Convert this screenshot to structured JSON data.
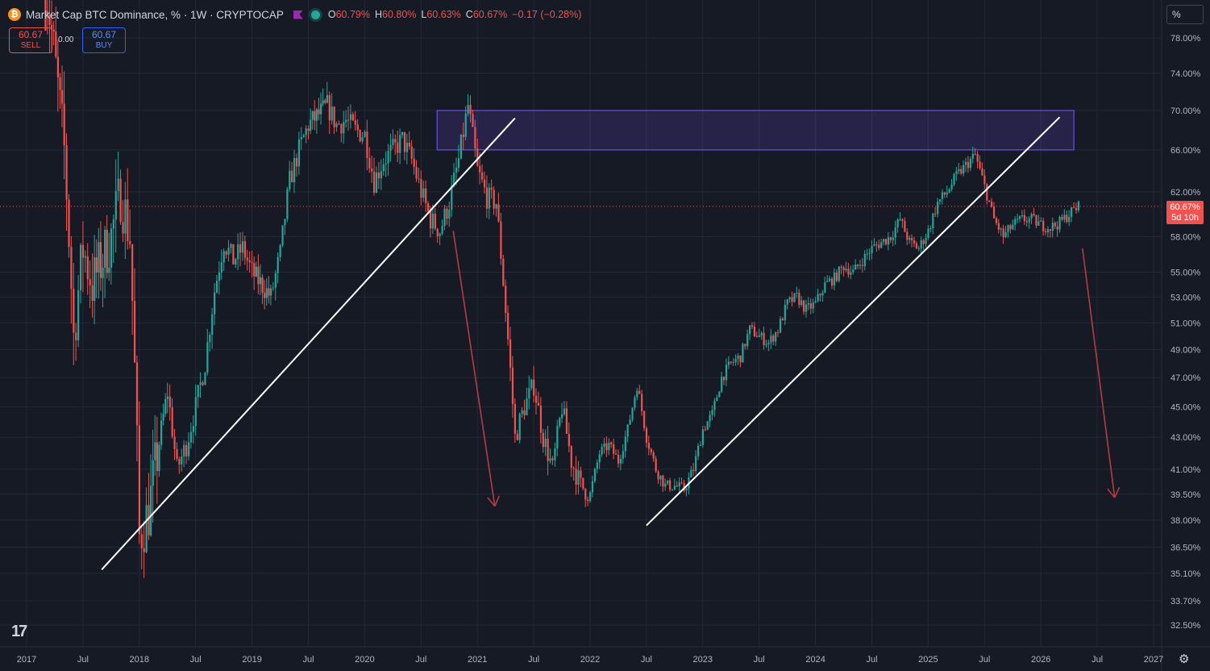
{
  "header": {
    "symbol_icon": "bitcoin-icon",
    "title": "Market Cap BTC Dominance, % · 1W · CRYPTOCAP",
    "ohlc": {
      "o_label": "O",
      "o_value": "60.79%",
      "h_label": "H",
      "h_value": "60.80%",
      "l_label": "L",
      "l_value": "60.63%",
      "c_label": "C",
      "c_value": "60.67%",
      "change": "−0.17 (−0.28%)"
    }
  },
  "trade": {
    "sell_price": "60.67",
    "sell_label": "SELL",
    "spread": "0.00",
    "buy_price": "60.67",
    "buy_label": "BUY"
  },
  "scale_button": "%",
  "last_price": {
    "value": "60.67%",
    "countdown": "5d 10h"
  },
  "colors": {
    "up": "#26a69a",
    "down": "#ef5350",
    "background": "#161a25",
    "zone": "#7b57ff"
  },
  "chart_data": {
    "type": "candlestick",
    "x_start": "2017-03",
    "x_end": "2026-05",
    "x_ticks": [
      "2017",
      "Jul",
      "2018",
      "Jul",
      "2019",
      "Jul",
      "2020",
      "Jul",
      "2021",
      "Jul",
      "2022",
      "Jul",
      "2023",
      "Jul",
      "2024",
      "Jul",
      "2025",
      "Jul",
      "2026",
      "Jul",
      "2027"
    ],
    "y_ticks": [
      "78.00%",
      "74.00%",
      "70.00%",
      "66.00%",
      "62.00%",
      "58.00%",
      "55.00%",
      "53.00%",
      "51.00%",
      "49.00%",
      "47.00%",
      "45.00%",
      "43.00%",
      "41.00%",
      "39.50%",
      "38.00%",
      "36.50%",
      "35.10%",
      "33.70%",
      "32.50%"
    ],
    "y_scale": "log",
    "grid": true,
    "series": [
      {
        "points": [
          [
            "2017-03",
            85.0
          ],
          [
            "2017-05",
            66.0
          ],
          [
            "2017-06",
            50.0
          ],
          [
            "2017-07",
            57.0
          ],
          [
            "2017-08",
            54.0
          ],
          [
            "2017-10",
            58.0
          ],
          [
            "2017-11",
            62.0
          ],
          [
            "2017-12",
            58.0
          ],
          [
            "2018-01",
            37.0
          ],
          [
            "2018-02",
            38.5
          ],
          [
            "2018-04",
            46.0
          ],
          [
            "2018-05",
            41.0
          ],
          [
            "2018-06",
            42.5
          ],
          [
            "2018-07",
            45.0
          ],
          [
            "2018-08",
            48.0
          ],
          [
            "2018-09",
            53.5
          ],
          [
            "2018-10",
            57.5
          ],
          [
            "2018-11",
            56.0
          ],
          [
            "2018-12",
            57.0
          ],
          [
            "2019-01",
            55.0
          ],
          [
            "2019-03",
            53.0
          ],
          [
            "2019-04",
            56.5
          ],
          [
            "2019-05",
            63.0
          ],
          [
            "2019-06",
            66.0
          ],
          [
            "2019-07",
            68.5
          ],
          [
            "2019-09",
            70.5
          ],
          [
            "2019-10",
            68.5
          ],
          [
            "2019-11",
            69.0
          ],
          [
            "2019-12",
            68.0
          ],
          [
            "2020-01",
            67.5
          ],
          [
            "2020-02",
            63.0
          ],
          [
            "2020-03",
            65.0
          ],
          [
            "2020-04",
            66.0
          ],
          [
            "2020-05",
            67.0
          ],
          [
            "2020-06",
            65.0
          ],
          [
            "2020-07",
            62.0
          ],
          [
            "2020-08",
            59.5
          ],
          [
            "2020-09",
            58.5
          ],
          [
            "2020-10",
            61.0
          ],
          [
            "2020-11",
            65.0
          ],
          [
            "2020-12",
            70.5
          ],
          [
            "2021-01",
            64.0
          ],
          [
            "2021-02",
            61.5
          ],
          [
            "2021-03",
            61.0
          ],
          [
            "2021-04",
            52.0
          ],
          [
            "2021-05",
            43.0
          ],
          [
            "2021-06",
            45.0
          ],
          [
            "2021-07",
            46.5
          ],
          [
            "2021-08",
            43.0
          ],
          [
            "2021-09",
            41.0
          ],
          [
            "2021-10",
            45.0
          ],
          [
            "2021-11",
            41.5
          ],
          [
            "2021-12",
            40.0
          ],
          [
            "2022-01",
            39.5
          ],
          [
            "2022-02",
            42.0
          ],
          [
            "2022-03",
            42.5
          ],
          [
            "2022-04",
            41.5
          ],
          [
            "2022-05",
            43.5
          ],
          [
            "2022-06",
            46.5
          ],
          [
            "2022-07",
            43.0
          ],
          [
            "2022-08",
            41.0
          ],
          [
            "2022-09",
            40.0
          ],
          [
            "2022-10",
            40.0
          ],
          [
            "2022-11",
            39.8
          ],
          [
            "2022-12",
            41.0
          ],
          [
            "2023-01",
            43.5
          ],
          [
            "2023-02",
            44.5
          ],
          [
            "2023-03",
            47.0
          ],
          [
            "2023-04",
            48.0
          ],
          [
            "2023-05",
            48.5
          ],
          [
            "2023-06",
            50.5
          ],
          [
            "2023-07",
            50.0
          ],
          [
            "2023-08",
            49.5
          ],
          [
            "2023-09",
            50.5
          ],
          [
            "2023-10",
            52.5
          ],
          [
            "2023-11",
            53.0
          ],
          [
            "2023-12",
            52.0
          ],
          [
            "2024-01",
            52.5
          ],
          [
            "2024-02",
            54.0
          ],
          [
            "2024-03",
            54.5
          ],
          [
            "2024-04",
            55.5
          ],
          [
            "2024-05",
            55.0
          ],
          [
            "2024-06",
            56.0
          ],
          [
            "2024-07",
            57.0
          ],
          [
            "2024-08",
            57.5
          ],
          [
            "2024-09",
            58.0
          ],
          [
            "2024-10",
            59.5
          ],
          [
            "2024-11",
            57.5
          ],
          [
            "2024-12",
            57.0
          ],
          [
            "2025-01",
            58.5
          ],
          [
            "2025-02",
            61.0
          ],
          [
            "2025-03",
            62.0
          ],
          [
            "2025-04",
            63.5
          ],
          [
            "2025-05",
            64.5
          ],
          [
            "2025-06",
            65.5
          ],
          [
            "2025-07",
            62.5
          ],
          [
            "2025-08",
            59.5
          ],
          [
            "2025-09",
            58.0
          ],
          [
            "2025-10",
            59.0
          ],
          [
            "2025-11",
            59.5
          ],
          [
            "2025-12",
            59.5
          ],
          [
            "2026-01",
            59.0
          ],
          [
            "2026-02",
            58.8
          ],
          [
            "2026-03",
            59.2
          ],
          [
            "2026-04",
            60.0
          ],
          [
            "2026-05",
            60.67
          ]
        ]
      }
    ],
    "annotations": {
      "resistance_zone": {
        "from": "2021-01",
        "to": "2026-04",
        "low": 66.0,
        "high": 70.0
      },
      "trendlines": [
        {
          "from": [
            "2017-09",
            35.3
          ],
          "to": [
            "2021-05",
            69.2
          ]
        },
        {
          "from": [
            "2022-07",
            37.7
          ],
          "to": [
            "2026-03",
            69.3
          ]
        }
      ],
      "arrows": [
        {
          "from": [
            "2020-10",
            58.5
          ],
          "to": [
            "2021-02",
            38.8
          ]
        },
        {
          "from": [
            "2026-05",
            57.0
          ],
          "to": [
            "2026-08",
            39.3
          ]
        }
      ],
      "last_price_line": 60.67
    }
  }
}
